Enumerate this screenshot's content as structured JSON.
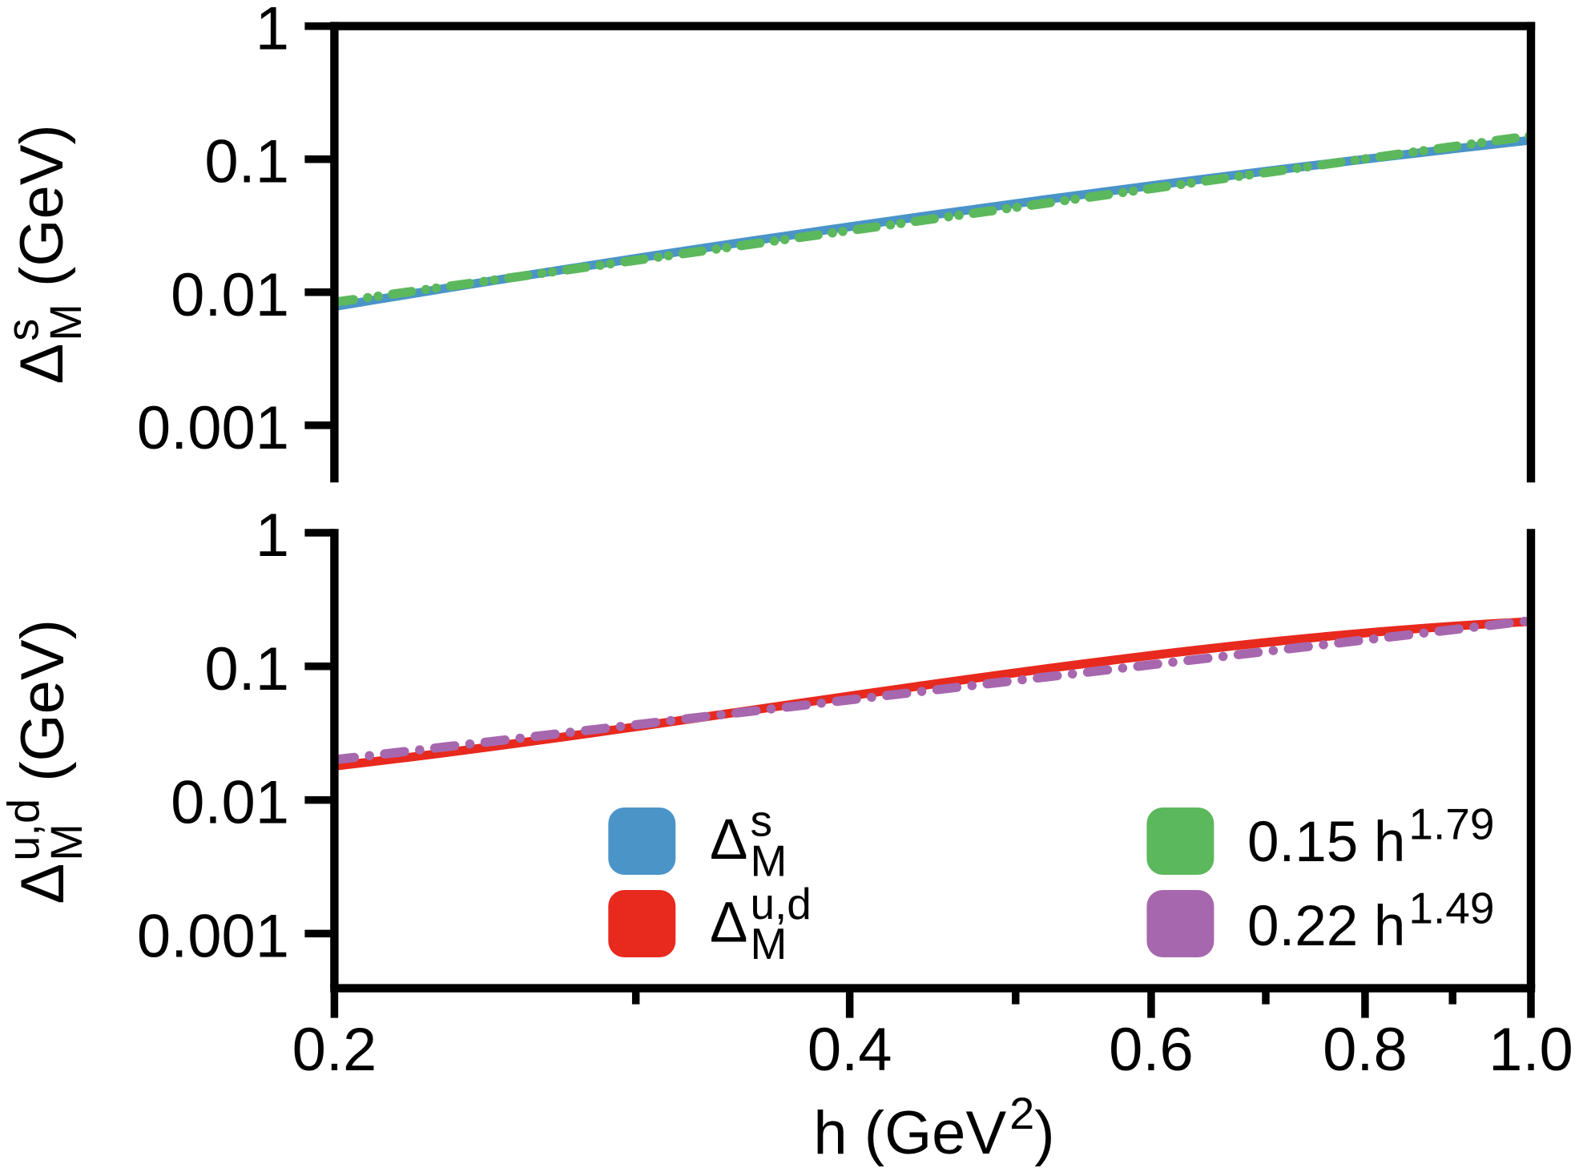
{
  "figure": {
    "background": "#ffffff"
  },
  "chart_data": {
    "type": "line",
    "log_x": true,
    "log_y": true,
    "grid": false,
    "xlabel": {
      "base": "h (GeV",
      "sup": "2",
      "close": ")"
    },
    "xlim": [
      0.2,
      1.0
    ],
    "xticks": {
      "values": [
        0.2,
        0.4,
        0.6,
        0.8,
        1.0
      ],
      "labels": [
        "0.2",
        "0.4",
        "0.6",
        "0.8",
        "1.0"
      ]
    },
    "xticks_minor": [
      0.3,
      0.5,
      0.7,
      0.9
    ],
    "x": [
      0.2,
      0.2103,
      0.2212,
      0.2326,
      0.2446,
      0.2572,
      0.2704,
      0.2844,
      0.2991,
      0.3145,
      0.3307,
      0.3478,
      0.3657,
      0.3846,
      0.4044,
      0.4253,
      0.4472,
      0.4703,
      0.4945,
      0.52,
      0.5469,
      0.5751,
      0.6047,
      0.6359,
      0.6687,
      0.7032,
      0.7395,
      0.7777,
      0.8178,
      0.8599,
      0.9043,
      0.9509,
      1.0
    ],
    "panels": [
      {
        "id": "top",
        "ylabel": {
          "delta": "Δ",
          "sup": "s",
          "sub": "M",
          "unit": " (GeV)"
        },
        "ylim": [
          0.00037,
          1.0
        ],
        "yticks": {
          "values": [
            1,
            0.1,
            0.01,
            0.001
          ],
          "labels": [
            "1",
            "0.1",
            "0.01",
            "0.001"
          ]
        },
        "series": [
          {
            "name": "delta-M-s-data",
            "color": "#4a94c8",
            "style": "solid",
            "y": [
              0.0077971,
              0.0086829,
              0.0096582,
              0.010731,
              0.011909,
              0.013202,
              0.014619,
              0.016169,
              0.017864,
              0.019714,
              0.02173,
              0.023926,
              0.026314,
              0.028907,
              0.03172,
              0.034767,
              0.038064,
              0.041626,
              0.04547,
              0.049613,
              0.054072,
              0.058865,
              0.06401,
              0.069526,
              0.075431,
              0.081746,
              0.088489,
              0.09568,
              0.10334,
              0.11148,
              0.12013,
              0.12931,
              0.13902
            ]
          },
          {
            "name": "fit-0.15-h-1.79",
            "color": "#5cb85c",
            "style": "dashdotdot",
            "y": [
              0.0084127,
              0.0092052,
              0.010072,
              0.011021,
              0.01206,
              0.013196,
              0.014439,
              0.015799,
              0.017287,
              0.018916,
              0.020698,
              0.022647,
              0.024781,
              0.027115,
              0.02967,
              0.032465,
              0.035523,
              0.03887,
              0.042531,
              0.046538,
              0.050922,
              0.055719,
              0.060968,
              0.066712,
              0.072997,
              0.079873,
              0.087398,
              0.095631,
              0.10464,
              0.1145,
              0.12528,
              0.13709,
              0.15
            ]
          }
        ]
      },
      {
        "id": "bottom",
        "ylabel": {
          "delta": "Δ",
          "sup": "u,d",
          "sub": "M",
          "unit": " (GeV)"
        },
        "ylim": [
          0.00039,
          1.0
        ],
        "yticks": {
          "values": [
            1,
            0.1,
            0.01,
            0.001
          ],
          "labels": [
            "1",
            "0.1",
            "0.01",
            "0.001"
          ]
        },
        "series": [
          {
            "name": "delta-M-ud-data",
            "color": "#e8291e",
            "style": "solid",
            "y": [
              0.017904,
              0.019304,
              0.020877,
              0.022643,
              0.02462,
              0.026828,
              0.029292,
              0.032034,
              0.035081,
              0.038457,
              0.04219,
              0.046307,
              0.050834,
              0.055797,
              0.061219,
              0.067119,
              0.073515,
              0.080416,
              0.087825,
              0.095735,
              0.10413,
              0.11298,
              0.12225,
              0.13187,
              0.14177,
              0.15187,
              0.16203,
              0.17215,
              0.18208,
              0.19165,
              0.2007,
              0.20904,
              0.21648
            ]
          },
          {
            "name": "fit-0.22-h-1.49",
            "color": "#a767ae",
            "style": "dashdot",
            "y": [
              0.019997,
              0.021553,
              0.02323,
              0.025038,
              0.026986,
              0.029086,
              0.03135,
              0.033789,
              0.036419,
              0.039253,
              0.042307,
              0.0456,
              0.049148,
              0.052973,
              0.057095,
              0.061538,
              0.066327,
              0.071488,
              0.077052,
              0.083048,
              0.08951,
              0.096476,
              0.10398,
              0.11208,
              0.1208,
              0.1302,
              0.14033,
              0.15125,
              0.16302,
              0.17571,
              0.18938,
              0.20412,
              0.22
            ]
          }
        ]
      }
    ],
    "legend": {
      "entries": [
        {
          "swatch": "#4a94c8",
          "label": {
            "delta": "Δ",
            "sup": "s",
            "sub": "M"
          }
        },
        {
          "swatch": "#e8291e",
          "label": {
            "delta": "Δ",
            "sup": "u,d",
            "sub": "M"
          }
        },
        {
          "swatch": "#5cb85c",
          "label": {
            "base": "0.15 h",
            "sup": "1.79"
          }
        },
        {
          "swatch": "#a767ae",
          "label": {
            "base": "0.22 h",
            "sup": "1.49"
          }
        }
      ]
    }
  }
}
